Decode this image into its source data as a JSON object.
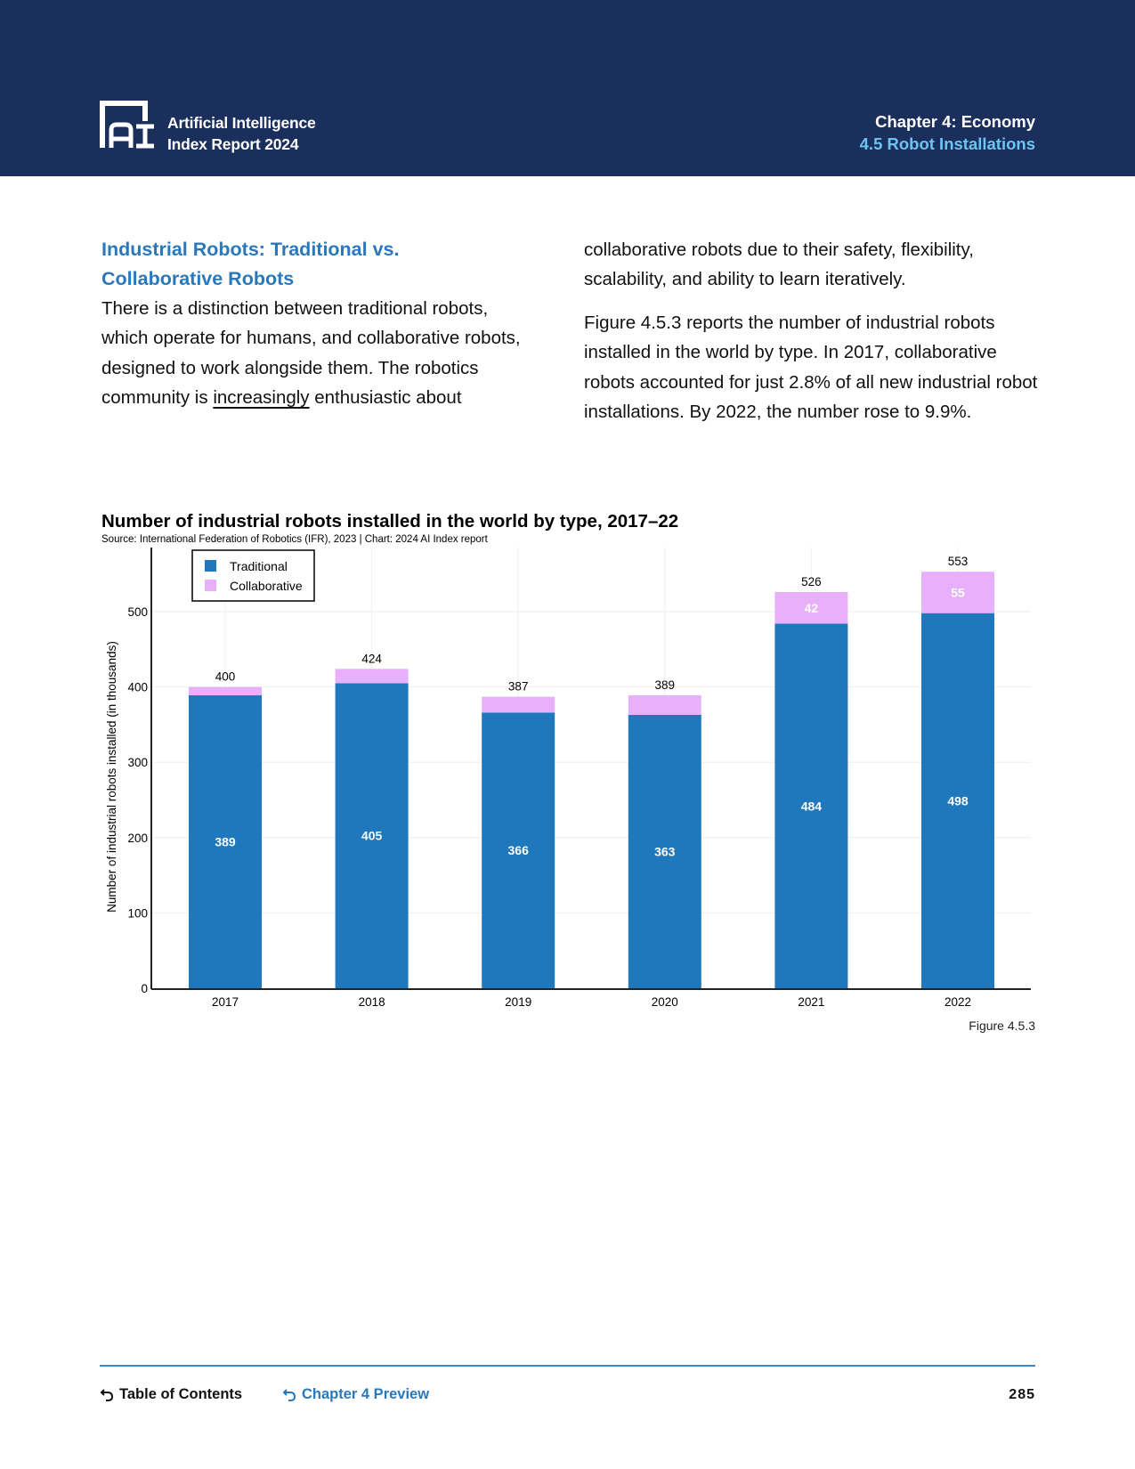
{
  "header": {
    "brand_line1": "Artificial Intelligence",
    "brand_line2": "Index Report 2024",
    "logo_text": "AI",
    "chapter": "Chapter 4: Economy",
    "section": "4.5 Robot Installations"
  },
  "body": {
    "section_title_line1": "Industrial Robots: Traditional vs.",
    "section_title_line2": "Collaborative Robots",
    "left_para_prefix": "There is a distinction between traditional robots, which operate for humans, and collaborative robots, designed to work alongside them. The robotics community is ",
    "left_para_link": "increasingly",
    "left_para_suffix": " enthusiastic about",
    "right_para1": "collaborative robots due to their safety, flexibility, scalability, and ability to learn iteratively.",
    "right_para2": "Figure 4.5.3 reports the number of industrial robots installed in the world by type. In 2017, collaborative robots accounted for just 2.8% of all new industrial robot installations. By 2022, the number rose to 9.9%."
  },
  "chart_data": {
    "type": "bar",
    "stacked": true,
    "title": "Number of industrial robots installed in the world by type, 2017–22",
    "source": "Source: International Federation of Robotics (IFR), 2023 | Chart: 2024 AI Index report",
    "xlabel": "",
    "ylabel": "Number of industrial robots installed (in thousands)",
    "categories": [
      "2017",
      "2018",
      "2019",
      "2020",
      "2021",
      "2022"
    ],
    "series": [
      {
        "name": "Traditional",
        "color": "#1f77bc",
        "values": [
          389,
          405,
          366,
          363,
          484,
          498
        ]
      },
      {
        "name": "Collaborative",
        "color": "#e8b0fb",
        "values": [
          11,
          19,
          21,
          26,
          42,
          55
        ]
      }
    ],
    "totals": [
      400,
      424,
      387,
      389,
      526,
      553
    ],
    "segment_labels_shown": {
      "Traditional": [
        true,
        true,
        true,
        true,
        true,
        true
      ],
      "Collaborative": [
        false,
        false,
        false,
        false,
        true,
        true
      ]
    },
    "ylim": [
      0,
      580
    ],
    "yticks": [
      0,
      100,
      200,
      300,
      400,
      500
    ],
    "grid": true,
    "legend_position": "top-left",
    "figure_label": "Figure 4.5.3"
  },
  "footer": {
    "toc_label": "Table of Contents",
    "preview_label": "Chapter 4 Preview",
    "page_number": "285"
  }
}
